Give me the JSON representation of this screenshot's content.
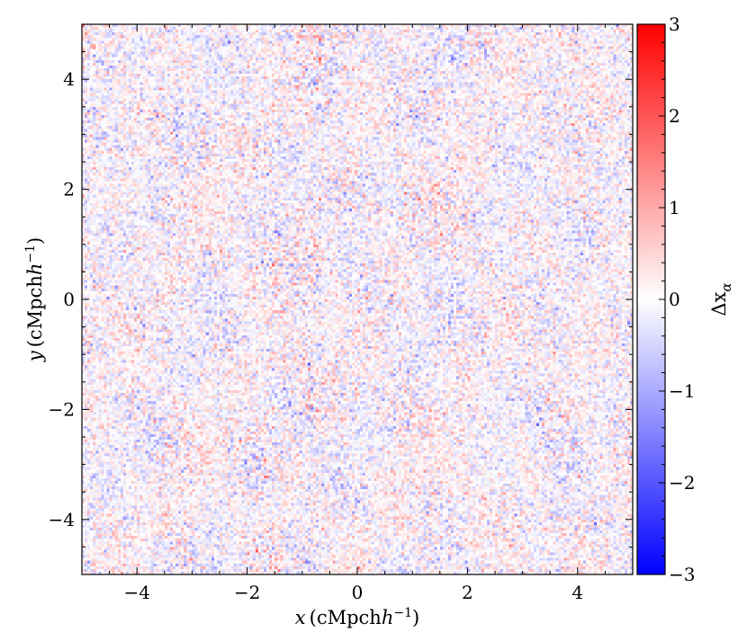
{
  "chart_data": {
    "type": "heatmap",
    "title": "",
    "x_range": [
      -5,
      5
    ],
    "y_range": [
      -5,
      5
    ],
    "x_ticks": [
      -4,
      -2,
      0,
      2,
      4
    ],
    "y_ticks": [
      -4,
      -2,
      0,
      2,
      4
    ],
    "x_tick_labels": [
      "−4",
      "−2",
      "0",
      "2",
      "4"
    ],
    "y_tick_labels": [
      "−4",
      "−2",
      "0",
      "2",
      "4"
    ],
    "xlabel": {
      "var": "x",
      "unit": "(cMpch",
      "sup": "−1",
      "close": ")"
    },
    "ylabel": {
      "var": "y",
      "unit": "(cMpch",
      "sup": "−1",
      "close": ")"
    },
    "colorbar": {
      "label": "Δx",
      "label_sub": "α",
      "vmin": -3,
      "vmax": 3,
      "ticks": [
        -3,
        -2,
        -1,
        0,
        1,
        2,
        3
      ],
      "tick_labels": [
        "−3",
        "−2",
        "−1",
        "0",
        "1",
        "2",
        "3"
      ],
      "colormap": "bwr",
      "colors": {
        "low": "#0000ff",
        "mid": "#ffffff",
        "high": "#ff0000"
      }
    },
    "field": {
      "description": "noisy 2D field with small amplitudes, mostly within ±1",
      "typical_amplitude": 0.6
    }
  }
}
